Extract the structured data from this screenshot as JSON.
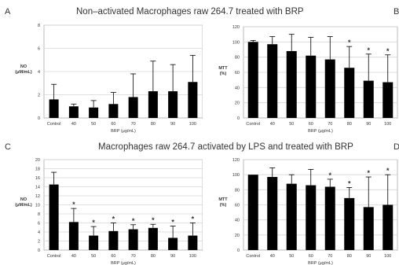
{
  "figure": {
    "rows": [
      {
        "title": "Non–activated Macrophages raw 264.7 treated with BRP"
      },
      {
        "title": "Macrophages raw 264.7 activated by LPS and treated with BRP"
      }
    ]
  },
  "chart_data": [
    {
      "panel": "A",
      "type": "bar",
      "title": "",
      "xlabel": "BRP (μg/mL)",
      "ylabel": "NO\n(μM/mL)",
      "categories": [
        "Control",
        "40",
        "50",
        "60",
        "70",
        "80",
        "90",
        "100"
      ],
      "values": [
        1.6,
        1.0,
        0.9,
        1.2,
        1.8,
        2.3,
        2.3,
        3.1
      ],
      "errors": [
        1.3,
        0.2,
        0.6,
        1.0,
        2.0,
        2.6,
        2.3,
        2.3
      ],
      "significant": [
        false,
        false,
        false,
        false,
        false,
        false,
        false,
        false
      ],
      "ylim": [
        0,
        8
      ],
      "yticks": [
        0,
        2,
        4,
        6,
        8
      ],
      "grid": true,
      "bar_color": "#000000"
    },
    {
      "panel": "B",
      "type": "bar",
      "title": "",
      "xlabel": "BRP (μg/mL)",
      "ylabel": "MTT\n(%)",
      "categories": [
        "Control",
        "40",
        "50",
        "60",
        "70",
        "80",
        "90",
        "100"
      ],
      "values": [
        100,
        97,
        88,
        82,
        77,
        66,
        49,
        47
      ],
      "errors": [
        2,
        10,
        22,
        24,
        30,
        28,
        35,
        36
      ],
      "significant": [
        false,
        false,
        false,
        false,
        false,
        true,
        true,
        true
      ],
      "ylim": [
        0,
        120
      ],
      "yticks": [
        0,
        20,
        40,
        60,
        80,
        100,
        120
      ],
      "grid": true,
      "bar_color": "#000000"
    },
    {
      "panel": "C",
      "type": "bar",
      "title": "",
      "xlabel": "BRP (μg/mL)",
      "ylabel": "NO\n(μM/mL)",
      "categories": [
        "Control",
        "40",
        "50",
        "60",
        "70",
        "80",
        "90",
        "100"
      ],
      "values": [
        14.5,
        6.2,
        3.2,
        4.2,
        4.6,
        4.9,
        2.7,
        3.2
      ],
      "errors": [
        2.7,
        3.0,
        2.0,
        1.8,
        1.0,
        0.8,
        2.6,
        2.8
      ],
      "significant": [
        false,
        true,
        true,
        true,
        true,
        true,
        true,
        true
      ],
      "ylim": [
        0,
        20
      ],
      "yticks": [
        0,
        2,
        4,
        6,
        8,
        10,
        12,
        14,
        16,
        18,
        20
      ],
      "grid": true,
      "bar_color": "#000000"
    },
    {
      "panel": "D",
      "type": "bar",
      "title": "",
      "xlabel": "BRP (μg/mL)",
      "ylabel": "MTT\n(%)",
      "categories": [
        "Control",
        "40",
        "50",
        "60",
        "70",
        "80",
        "90",
        "100"
      ],
      "values": [
        100,
        97,
        88,
        86,
        84,
        69,
        57,
        60
      ],
      "errors": [
        0,
        12,
        12,
        21,
        10,
        14,
        40,
        40
      ],
      "significant": [
        false,
        false,
        false,
        false,
        true,
        true,
        true,
        true
      ],
      "ylim": [
        0,
        120
      ],
      "yticks": [
        0,
        20,
        40,
        60,
        80,
        100,
        120
      ],
      "grid": true,
      "bar_color": "#000000"
    }
  ]
}
